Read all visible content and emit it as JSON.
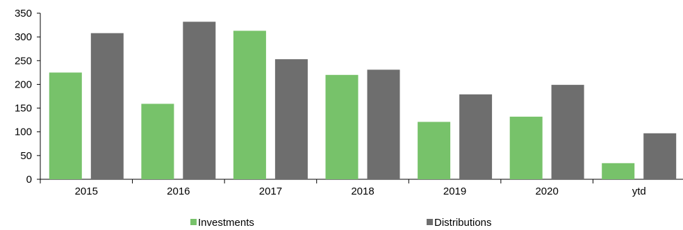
{
  "chart_data": {
    "type": "bar",
    "title": "",
    "xlabel": "",
    "ylabel": "",
    "categories": [
      "2015",
      "2016",
      "2017",
      "2018",
      "2019",
      "2020",
      "ytd"
    ],
    "series": [
      {
        "name": "Investments",
        "color": "#77c26a",
        "values": [
          225,
          159,
          313,
          220,
          121,
          132,
          34
        ]
      },
      {
        "name": "Distributions",
        "color": "#6e6e6e",
        "values": [
          308,
          332,
          253,
          231,
          179,
          199,
          97
        ]
      }
    ],
    "ylim": [
      0,
      350
    ],
    "yticks": [
      0,
      50,
      100,
      150,
      200,
      250,
      300,
      350
    ],
    "grid": false,
    "legend_position": "bottom"
  }
}
